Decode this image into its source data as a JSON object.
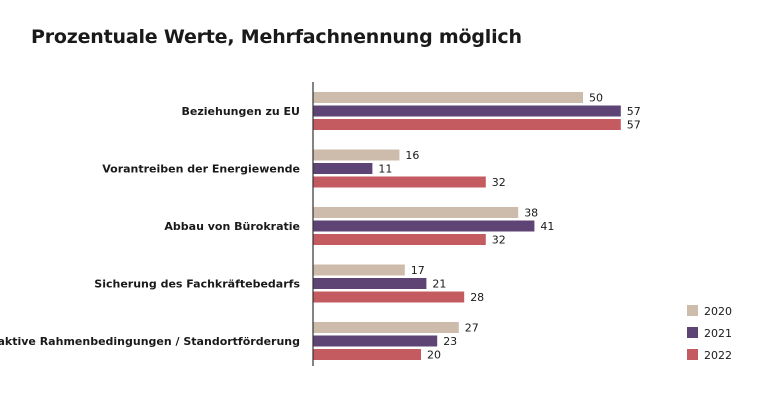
{
  "chart_data": {
    "type": "bar",
    "orientation": "horizontal",
    "title": "Prozentuale Werte, Mehrfachnennung möglich",
    "categories": [
      "Beziehungen zu EU",
      "Vorantreiben der Energiewende",
      "Abbau von Bürokratie",
      "Sicherung des Fachkräftebedarfs",
      "Attraktive Rahmenbedingungen / Standortförderung"
    ],
    "series": [
      {
        "name": "2020",
        "color": "#cdbcac",
        "values": [
          50,
          16,
          38,
          17,
          27
        ]
      },
      {
        "name": "2021",
        "color": "#5e4474",
        "values": [
          57,
          11,
          41,
          21,
          23
        ]
      },
      {
        "name": "2022",
        "color": "#c45b60",
        "values": [
          57,
          32,
          32,
          28,
          20
        ]
      }
    ],
    "xlim": [
      0,
      100
    ],
    "grid": false,
    "legend": "bottom-right",
    "xlabel": "",
    "ylabel": ""
  }
}
